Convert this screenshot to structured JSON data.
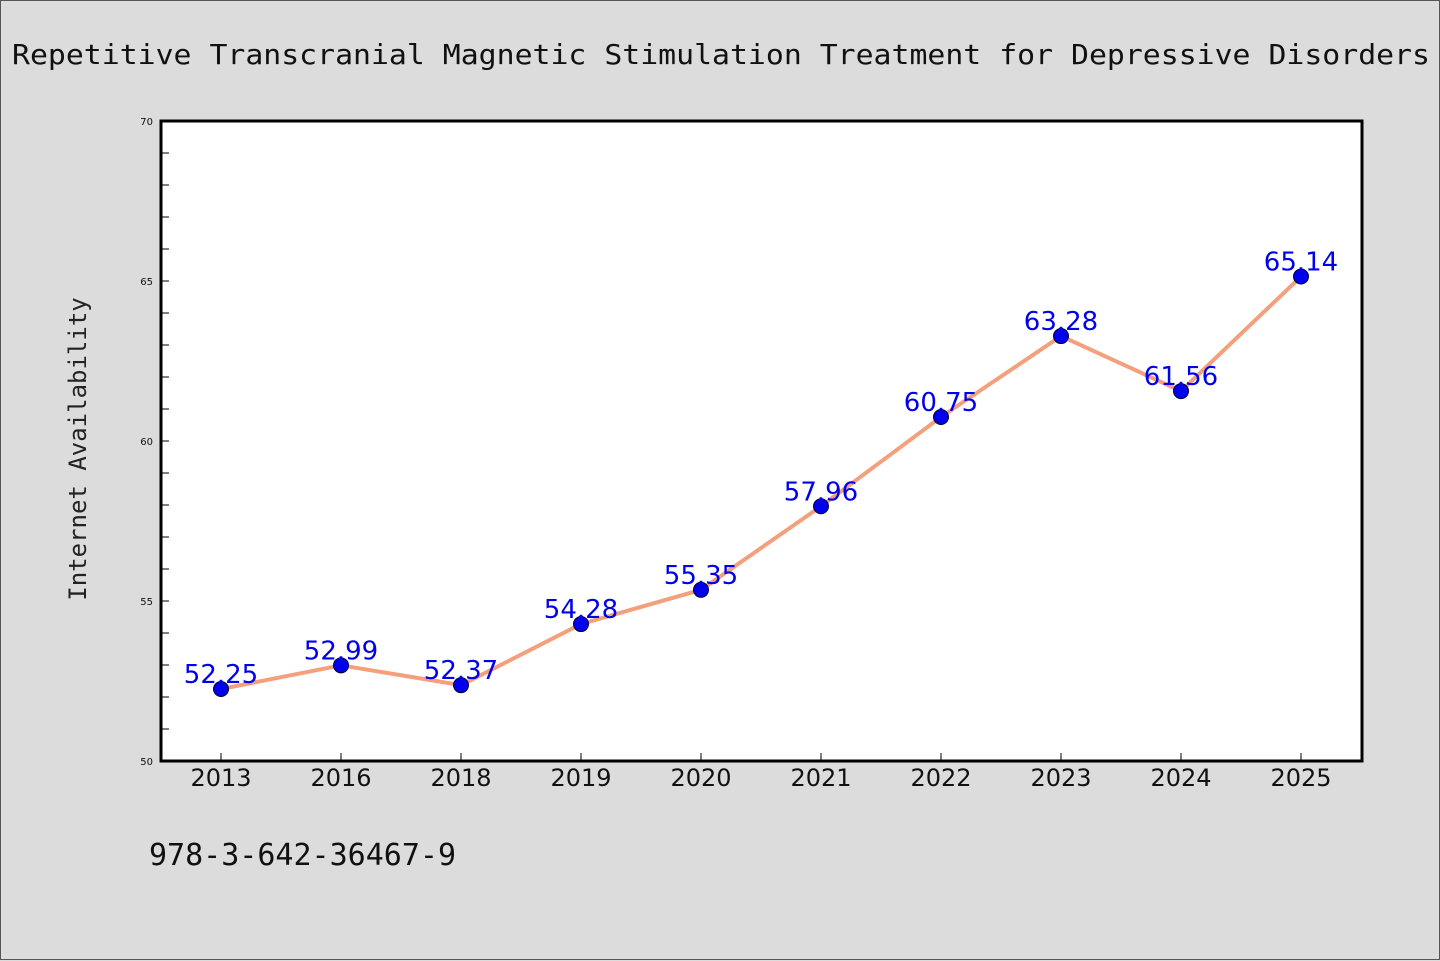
{
  "chart_data": {
    "type": "line",
    "title": "Repetitive Transcranial Magnetic Stimulation Treatment for Depressive Disorders",
    "xlabel": "",
    "ylabel": "Internet Availability",
    "categories": [
      "2013",
      "2016",
      "2018",
      "2019",
      "2020",
      "2021",
      "2022",
      "2023",
      "2024",
      "2025"
    ],
    "series": [
      {
        "values": [
          52.25,
          52.99,
          52.37,
          54.28,
          55.35,
          57.96,
          60.75,
          63.28,
          61.56,
          65.14
        ]
      }
    ],
    "data_labels": [
      "52.25",
      "52.99",
      "52.37",
      "54.28",
      "55.35",
      "57.96",
      "60.75",
      "63.28",
      "61.56",
      "65.14"
    ],
    "ylim": [
      50,
      70
    ],
    "yticks": [
      "50",
      "55",
      "60",
      "65",
      "70"
    ],
    "grid": false,
    "legend": "none",
    "colors": {
      "line": "#f4a07c",
      "marker": "#0000ee",
      "label": "#0000ee",
      "background": "#dcdcdc",
      "plot_background": "#ffffff"
    }
  },
  "footer": {
    "isbn": "978-3-642-36467-9"
  }
}
